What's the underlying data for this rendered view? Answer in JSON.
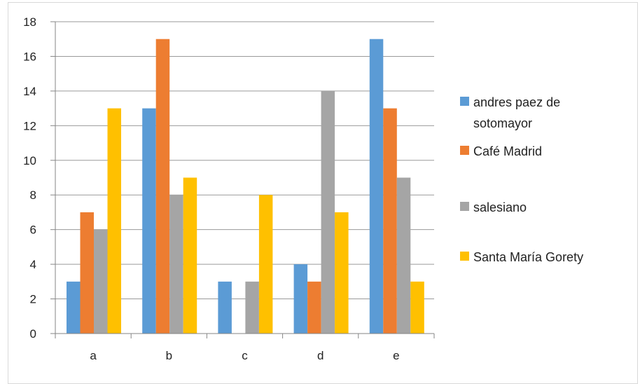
{
  "chart_data": {
    "type": "bar",
    "categories": [
      "a",
      "b",
      "c",
      "d",
      "e"
    ],
    "series": [
      {
        "name": "andres paez de sotomayor",
        "label_lines": [
          "andres paez de",
          "sotomayor"
        ],
        "color": "#5b9bd5",
        "values": [
          3,
          13,
          3,
          4,
          17
        ]
      },
      {
        "name": "Café Madrid",
        "label_lines": [
          "Café Madrid"
        ],
        "color": "#ed7d31",
        "values": [
          7,
          17,
          0,
          3,
          13
        ]
      },
      {
        "name": "salesiano",
        "label_lines": [
          "salesiano"
        ],
        "color": "#a5a5a5",
        "values": [
          6,
          8,
          3,
          14,
          9
        ]
      },
      {
        "name": "Santa María Gorety",
        "label_lines": [
          "Santa María Gorety"
        ],
        "color": "#ffc000",
        "values": [
          13,
          9,
          8,
          7,
          3
        ]
      }
    ],
    "ylim": [
      0,
      18
    ],
    "yticks": [
      0,
      2,
      4,
      6,
      8,
      10,
      12,
      14,
      16,
      18
    ],
    "grid": true,
    "legend_position": "right"
  }
}
